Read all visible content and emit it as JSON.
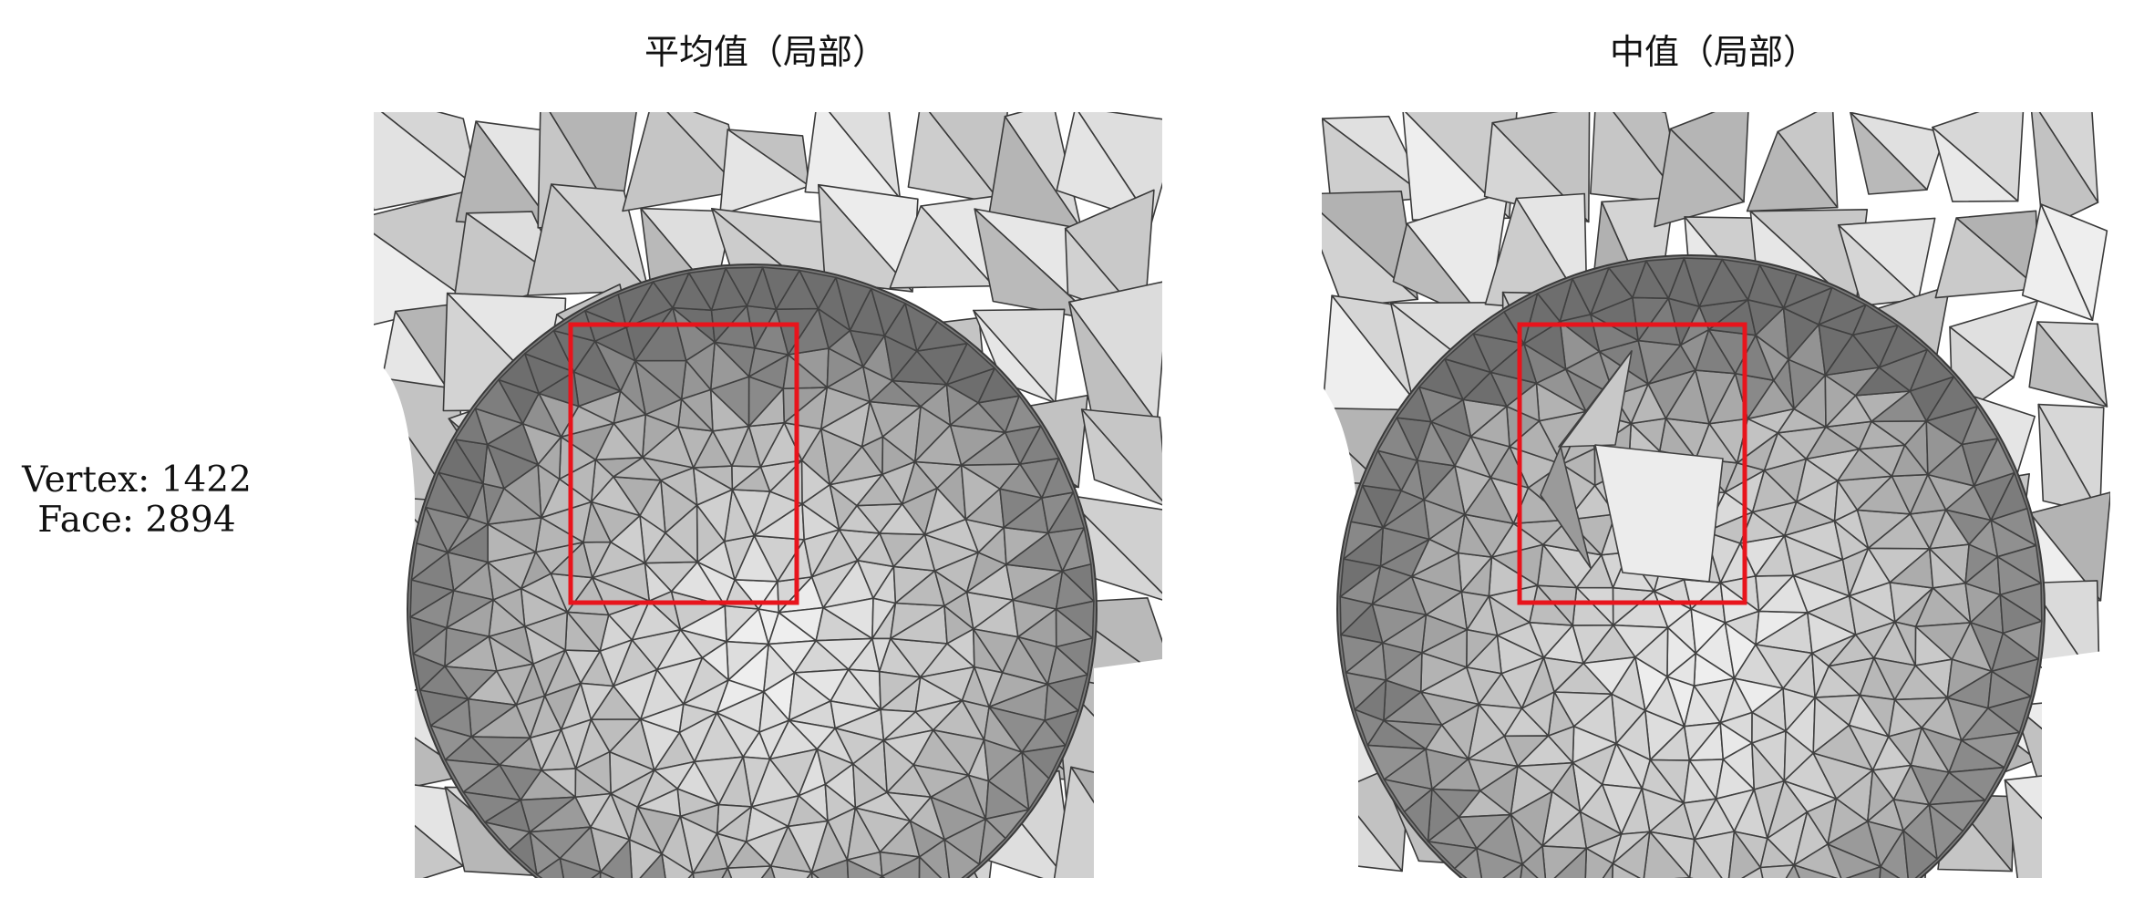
{
  "figure": {
    "stats": {
      "vertex_line": "Vertex: 1422",
      "face_line": "Face: 2894"
    },
    "panels": [
      {
        "id": "mean-local",
        "title": "平均值（局部）",
        "highlight_color": "#e8141c"
      },
      {
        "id": "median-local",
        "title": "中值（局部）",
        "highlight_color": "#e8141c"
      }
    ]
  }
}
